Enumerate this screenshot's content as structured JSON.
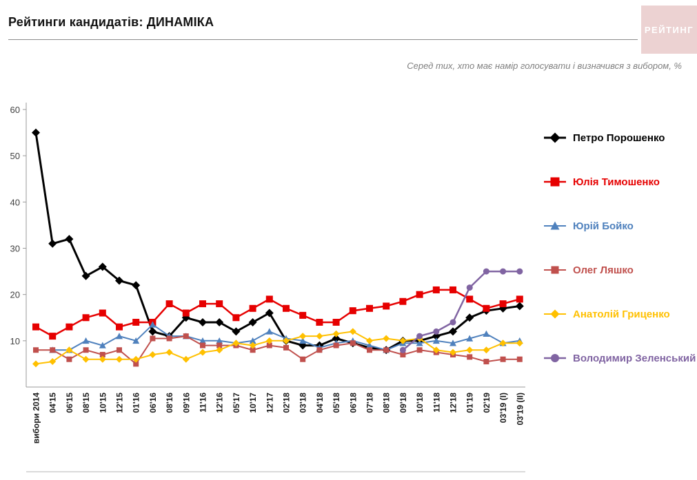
{
  "header": {
    "title": "Рейтинги кандидатів: ДИНАМІКА",
    "logo": "РЕЙТИНГ",
    "subtitle": "Серед тих, хто має намір голосувати і визначився з вибором, %"
  },
  "colors": {
    "logo_background": "#ecd2d2",
    "logo_text": "#ffffff",
    "axis": "#9a9a9a",
    "subtitle_text": "#7f7f7f"
  },
  "chart_data": {
    "type": "line",
    "title": "Рейтинги кандидатів: ДИНАМІКА",
    "xlabel": "",
    "ylabel": "",
    "ylim": [
      0,
      60
    ],
    "yticks": [
      10,
      20,
      30,
      40,
      50,
      60
    ],
    "grid": false,
    "legend_position": "right",
    "categories": [
      "вибори 2014",
      "04'15",
      "06'15",
      "08'15",
      "10'15",
      "12'15",
      "01'16",
      "06'16",
      "08'16",
      "09'16",
      "11'16",
      "12'16",
      "05'17",
      "10'17",
      "12'17",
      "02'18",
      "03'18",
      "04'18",
      "05'18",
      "06'18",
      "07'18",
      "08'18",
      "09'18",
      "10'18",
      "11'18",
      "12'18",
      "01'19",
      "02'19",
      "03'19 (I)",
      "03'19 (II)"
    ],
    "series": [
      {
        "name": "Петро Порошенко",
        "color": "#000000",
        "marker": "diamond",
        "line_width": 3,
        "marker_size": 6,
        "values": [
          55,
          31,
          32,
          24,
          26,
          23,
          22,
          12,
          11,
          15,
          14,
          14,
          12,
          14,
          16,
          10,
          9,
          9,
          10.5,
          9.5,
          8.5,
          8,
          10,
          10,
          11,
          12,
          15,
          16.5,
          17,
          17.5
        ]
      },
      {
        "name": "Юлія Тимошенко",
        "color": "#e60000",
        "marker": "square",
        "line_width": 2.5,
        "marker_size": 5.5,
        "values": [
          13,
          11,
          13,
          15,
          16,
          13,
          14,
          14,
          18,
          16,
          18,
          18,
          15,
          17,
          19,
          17,
          15.5,
          14,
          14,
          16.5,
          17,
          17.5,
          18.5,
          20,
          21,
          21,
          19,
          17,
          18,
          19
        ]
      },
      {
        "name": "Юрій Бойко",
        "color": "#4f81bd",
        "marker": "triangle",
        "line_width": 2,
        "marker_size": 5,
        "values": [
          null,
          8,
          8,
          10,
          9,
          11,
          10,
          13.5,
          11,
          11,
          10,
          10,
          9.5,
          10,
          12,
          10.5,
          10,
          8.5,
          9.5,
          10,
          9,
          8,
          9.5,
          9.5,
          10,
          9.5,
          10.5,
          11.5,
          9.5,
          10
        ]
      },
      {
        "name": "Олег Ляшко",
        "color": "#c0504d",
        "marker": "square",
        "line_width": 2,
        "marker_size": 4.5,
        "values": [
          8,
          8,
          6,
          8,
          7,
          8,
          5,
          10.5,
          10.5,
          11,
          9,
          9,
          9,
          8,
          9,
          8.5,
          6,
          8,
          9,
          9.5,
          8,
          8,
          7,
          8,
          7.5,
          7,
          6.5,
          5.5,
          6,
          6
        ]
      },
      {
        "name": "Анатолій Гриценко",
        "color": "#ffc000",
        "marker": "diamond",
        "line_width": 2,
        "marker_size": 5,
        "values": [
          5,
          5.5,
          8,
          6,
          6,
          6,
          6,
          7,
          7.5,
          6,
          7.5,
          8,
          9.5,
          9,
          10,
          10,
          11,
          11,
          11.5,
          12,
          10,
          10.5,
          10,
          10.5,
          8,
          7.5,
          8,
          8,
          9.5,
          9.5
        ]
      },
      {
        "name": "Володимир Зеленський",
        "color": "#8064a2",
        "marker": "circle",
        "line_width": 2.5,
        "marker_size": 5,
        "values": [
          null,
          null,
          null,
          null,
          null,
          null,
          null,
          null,
          null,
          null,
          null,
          null,
          null,
          null,
          null,
          null,
          null,
          null,
          null,
          null,
          null,
          null,
          8,
          11,
          12,
          14,
          21.5,
          25,
          25,
          25
        ]
      }
    ]
  }
}
